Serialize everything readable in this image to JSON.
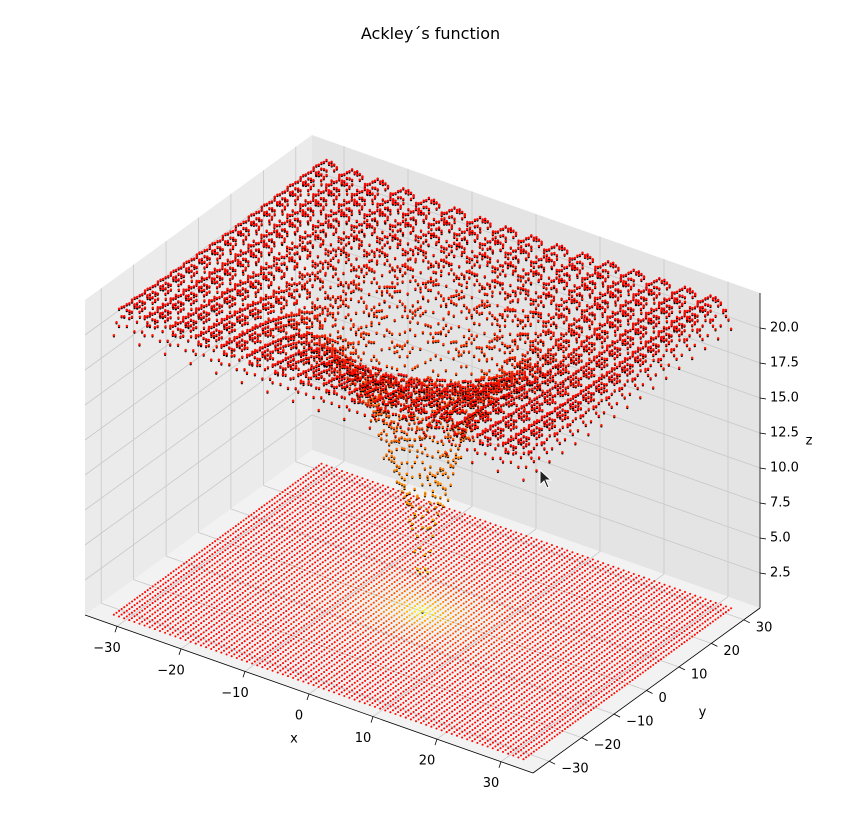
{
  "chart_data": {
    "type": "scatter",
    "projection": "3d",
    "title": "Ackley´s function",
    "xlabel": "x",
    "ylabel": "y",
    "zlabel": "z",
    "xlim": [
      -35,
      35
    ],
    "ylim": [
      -35,
      35
    ],
    "zlim": [
      0,
      22.5
    ],
    "xticks": [
      -30,
      -20,
      -10,
      0,
      10,
      20,
      30
    ],
    "yticks": [
      -30,
      -20,
      -10,
      0,
      10,
      20,
      30
    ],
    "zticks": [
      2.5,
      5.0,
      7.5,
      10.0,
      12.5,
      15.0,
      17.5,
      20.0
    ],
    "xtick_labels": [
      "−30",
      "−20",
      "−10",
      "0",
      "10",
      "20",
      "30"
    ],
    "ytick_labels": [
      "−30",
      "−20",
      "−10",
      "0",
      "10",
      "20",
      "30"
    ],
    "ztick_labels": [
      "2.5",
      "5.0",
      "7.5",
      "10.0",
      "12.5",
      "15.0",
      "17.5",
      "20.0"
    ],
    "grid": true,
    "function": "z = -20·exp(-0.2·sqrt(0.5·(x²+y²))) - exp(0.5·(cos 2πx + cos 2πy)) + e + 20",
    "surface_grid": {
      "x_range": [
        -32,
        32
      ],
      "y_range": [
        -32,
        32
      ],
      "points_per_axis": 81
    },
    "floor_projection": {
      "z": 0,
      "cmap": "autumn"
    },
    "colors": {
      "surface": "#ff1400",
      "edge": "#000000",
      "center": "#ffe000",
      "pane": "#ebebeb",
      "grid": "#c8c8c8"
    }
  }
}
